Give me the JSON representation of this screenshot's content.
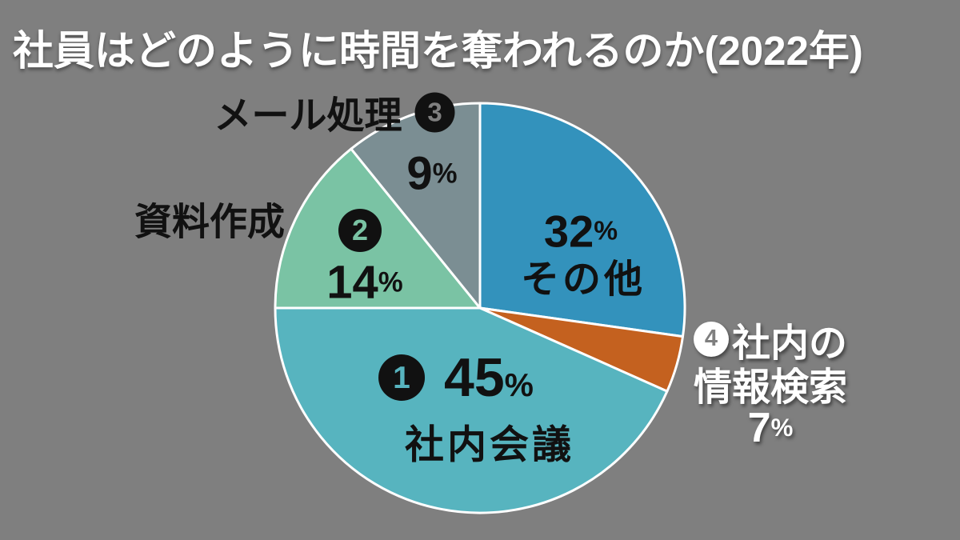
{
  "background": "#7f7f7f",
  "title": "社員はどのように時間を奪われるのか(2022年)",
  "percent_sign": "%",
  "chart_data": {
    "type": "pie",
    "title": "社員はどのように時間を奪われるのか(2022年)",
    "unit": "%",
    "legend_position": "labels-around-slices",
    "center": [
      600,
      385
    ],
    "radius": 256,
    "stroke": "#ffffff",
    "slices": [
      {
        "id": "others",
        "label": "その他",
        "rank": null,
        "value": 32,
        "color": "#3392bc",
        "start_deg": 0,
        "end_deg": 98
      },
      {
        "id": "search",
        "label": "社内の情報検索",
        "rank": 4,
        "value": 7,
        "color": "#c4611f",
        "start_deg": 98,
        "end_deg": 114
      },
      {
        "id": "meetings",
        "label": "社内会議",
        "rank": 1,
        "value": 45,
        "color": "#57b4bf",
        "start_deg": 114,
        "end_deg": 270
      },
      {
        "id": "docs",
        "label": "資料作成",
        "rank": 2,
        "value": 14,
        "color": "#7ac3a4",
        "start_deg": 270,
        "end_deg": 321
      },
      {
        "id": "mail",
        "label": "メール処理",
        "rank": 3,
        "value": 9,
        "color": "#7b8e93",
        "start_deg": 321,
        "end_deg": 360
      }
    ]
  },
  "labels": {
    "mail_name": "メール処理",
    "mail_badge": "3",
    "mail_value": "9",
    "docs_name": "資料作成",
    "docs_badge": "2",
    "docs_value": "14",
    "meetings_badge": "1",
    "meetings_value": "45",
    "meetings_name": "社内会議",
    "others_value": "32",
    "others_name": "その他",
    "search_badge": "4",
    "search_name_line1": "社内の",
    "search_name_line2": "情報検索",
    "search_value": "7"
  }
}
